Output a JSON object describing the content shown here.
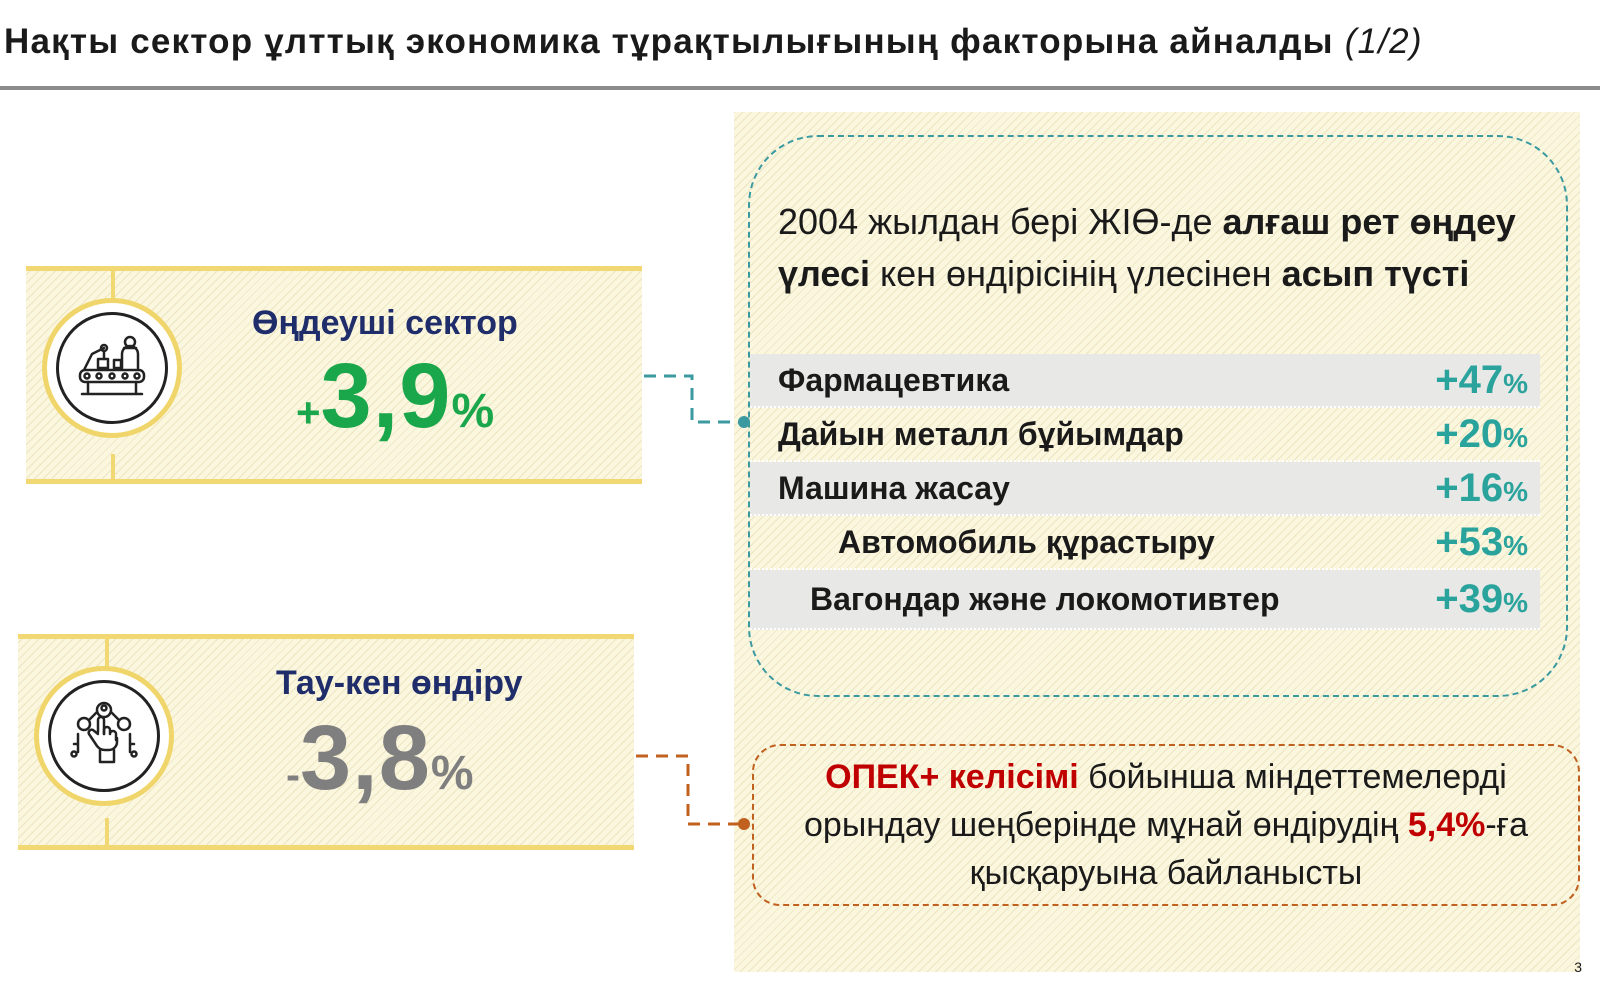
{
  "title": {
    "main": "Нақты сектор ұлттық экономика тұрақтылығының факторына айналды",
    "suffix": "(1/2)"
  },
  "sectors": [
    {
      "name": "Өңдеуші сектор",
      "sign": "+",
      "value": "3,9",
      "unit": "%",
      "color": "#1aa64a",
      "icon": "factory-workers-icon"
    },
    {
      "name": "Тау-кен өндіру",
      "sign": "-",
      "value": "3,8",
      "unit": "%",
      "color": "#7f7f7f",
      "icon": "mining-hand-network-icon"
    }
  ],
  "highlight": {
    "part1": "2004 жылдан бері ЖІӨ-де ",
    "bold1": "алғаш рет өңдеу үлесі",
    "part2": " кен өндірісінің үлесінен ",
    "bold2": "асып түсті"
  },
  "industries": [
    {
      "label": "Фармацевтика",
      "value": "+47",
      "unit": "%"
    },
    {
      "label": "Дайын металл бұйымдар",
      "value": "+20",
      "unit": "%"
    },
    {
      "label": "Машина жасау",
      "value": "+16",
      "unit": "%"
    },
    {
      "label": "Автомобиль құрастыру",
      "value": "+53",
      "unit": "%"
    },
    {
      "label": "Вагондар және локомотивтер",
      "value": "+39",
      "unit": "%"
    }
  ],
  "opec": {
    "red1": "ОПЕК+ келісімі",
    "text1": " бойынша міндеттемелерді орындау шеңберінде мұнай өндірудің ",
    "red2": "5,4%",
    "text2": "-ға қысқаруына байланысты"
  },
  "colors": {
    "teal": "#2aa39c",
    "orange": "#c0611f",
    "red": "#c00000",
    "navy": "#1f2d6b",
    "yellow_line": "#f2d873"
  },
  "page_number": "3"
}
